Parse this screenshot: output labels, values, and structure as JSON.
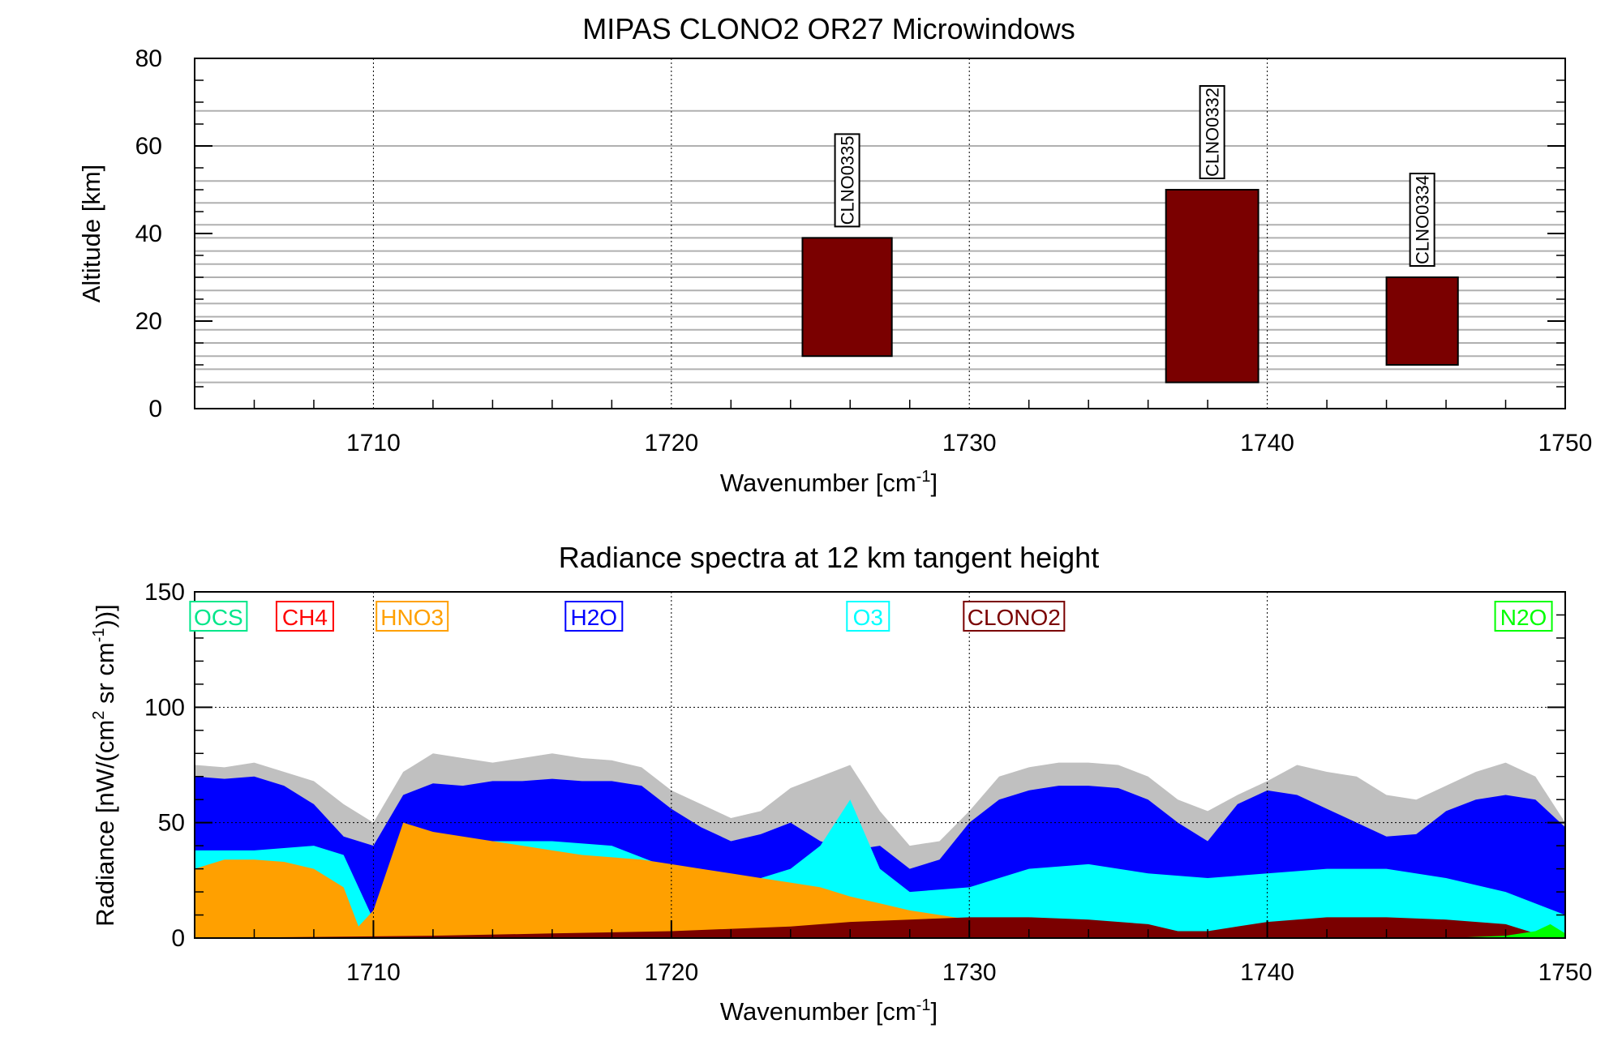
{
  "chart_data": [
    {
      "type": "bar",
      "title": "MIPAS CLONO2 OR27 Microwindows",
      "xlabel": "Wavenumber [cm",
      "xlabel_sup": "-1",
      "xlabel_end": "]",
      "ylabel": "Altitude [km]",
      "xlim": [
        1704,
        1750
      ],
      "ylim": [
        0,
        80
      ],
      "xticks": [
        "1710",
        "1720",
        "1730",
        "1740",
        "1750"
      ],
      "xtick_values": [
        1710,
        1720,
        1730,
        1740,
        1750
      ],
      "yticks": [
        "0",
        "20",
        "40",
        "60",
        "80"
      ],
      "ytick_values": [
        0,
        20,
        40,
        60,
        80
      ],
      "tangent_altitudes": [
        6,
        9,
        12,
        15,
        18,
        21,
        24,
        27,
        30,
        33,
        36,
        39,
        42,
        47,
        52,
        60,
        68,
        0
      ],
      "microwindows": [
        {
          "name": "CLNO0335",
          "x_start": 1724.4,
          "x_end": 1727.4,
          "y_bottom": 12,
          "y_top": 39
        },
        {
          "name": "CLNO0332",
          "x_start": 1736.6,
          "x_end": 1739.7,
          "y_bottom": 6,
          "y_top": 50
        },
        {
          "name": "CLNO0334",
          "x_start": 1744.0,
          "x_end": 1746.4,
          "y_bottom": 10,
          "y_top": 30
        }
      ],
      "bar_color": "#7a0000"
    },
    {
      "type": "area",
      "title": "Radiance spectra at 12 km tangent height",
      "xlabel": "Wavenumber [cm",
      "xlabel_sup": "-1",
      "xlabel_end": "]",
      "ylabel_parts": [
        "Radiance [nW/(cm",
        "2",
        " sr cm",
        "-1",
        "))]"
      ],
      "xlim": [
        1704,
        1750
      ],
      "ylim": [
        0,
        150
      ],
      "xticks": [
        "1710",
        "1720",
        "1730",
        "1740",
        "1750"
      ],
      "xtick_values": [
        1710,
        1720,
        1730,
        1740,
        1750
      ],
      "yticks": [
        "0",
        "50",
        "100",
        "150"
      ],
      "ytick_values": [
        0,
        50,
        100,
        150
      ],
      "species": [
        {
          "name": "OCS",
          "color": "#00e68a"
        },
        {
          "name": "CH4",
          "color": "#ff0000"
        },
        {
          "name": "HNO3",
          "color": "#ffa000"
        },
        {
          "name": "H2O",
          "color": "#0000ff"
        },
        {
          "name": "O3",
          "color": "#00ffff"
        },
        {
          "name": "CLONO2",
          "color": "#7a0000"
        },
        {
          "name": "N2O",
          "color": "#00ff00"
        }
      ],
      "series": [
        {
          "name": "Total",
          "color": "#c0c0c0",
          "x": [
            1704,
            1705,
            1706,
            1707,
            1708,
            1709,
            1710,
            1711,
            1712,
            1713,
            1714,
            1715,
            1716,
            1717,
            1718,
            1719,
            1720,
            1721,
            1722,
            1723,
            1724,
            1725,
            1726,
            1727,
            1728,
            1729,
            1730,
            1731,
            1732,
            1733,
            1734,
            1735,
            1736,
            1737,
            1738,
            1739,
            1740,
            1741,
            1742,
            1743,
            1744,
            1745,
            1746,
            1747,
            1748,
            1749,
            1750
          ],
          "values": [
            75,
            74,
            76,
            72,
            68,
            58,
            50,
            72,
            80,
            78,
            76,
            78,
            80,
            78,
            77,
            74,
            64,
            58,
            52,
            55,
            65,
            70,
            75,
            55,
            40,
            42,
            55,
            70,
            74,
            76,
            76,
            75,
            70,
            60,
            55,
            62,
            68,
            75,
            72,
            70,
            62,
            60,
            66,
            72,
            76,
            70,
            50
          ]
        },
        {
          "name": "H2O",
          "color": "#0000ff",
          "x": [
            1704,
            1705,
            1706,
            1707,
            1708,
            1709,
            1710,
            1711,
            1712,
            1713,
            1714,
            1715,
            1716,
            1717,
            1718,
            1719,
            1720,
            1721,
            1722,
            1723,
            1724,
            1725,
            1726,
            1727,
            1728,
            1729,
            1730,
            1731,
            1732,
            1733,
            1734,
            1735,
            1736,
            1737,
            1738,
            1739,
            1740,
            1741,
            1742,
            1743,
            1744,
            1745,
            1746,
            1747,
            1748,
            1749,
            1750
          ],
          "values": [
            70,
            69,
            70,
            66,
            58,
            44,
            40,
            62,
            67,
            66,
            68,
            68,
            69,
            68,
            68,
            66,
            56,
            48,
            42,
            45,
            50,
            42,
            38,
            40,
            30,
            34,
            50,
            60,
            64,
            66,
            66,
            65,
            60,
            50,
            42,
            58,
            64,
            62,
            56,
            50,
            44,
            45,
            55,
            60,
            62,
            60,
            48
          ]
        },
        {
          "name": "O3",
          "color": "#00ffff",
          "x": [
            1704,
            1706,
            1708,
            1709,
            1710,
            1712,
            1714,
            1716,
            1718,
            1720,
            1722,
            1724,
            1725,
            1726,
            1727,
            1728,
            1730,
            1732,
            1734,
            1736,
            1738,
            1740,
            1742,
            1744,
            1746,
            1748,
            1750
          ],
          "values": [
            38,
            38,
            40,
            36,
            8,
            40,
            42,
            42,
            40,
            30,
            22,
            30,
            40,
            60,
            30,
            20,
            22,
            30,
            32,
            28,
            26,
            28,
            30,
            30,
            26,
            20,
            10
          ]
        },
        {
          "name": "HNO3",
          "color": "#ffa000",
          "x": [
            1704,
            1705,
            1706,
            1707,
            1708,
            1709,
            1709.5,
            1710,
            1711,
            1712,
            1713,
            1714,
            1715,
            1716,
            1717,
            1718,
            1719,
            1720,
            1721,
            1722,
            1723,
            1724,
            1725,
            1726,
            1727,
            1728,
            1729,
            1730,
            1731,
            1732,
            1733,
            1734,
            1735,
            1736,
            1737,
            1738,
            1739,
            1740
          ],
          "values": [
            30,
            34,
            34,
            33,
            30,
            22,
            5,
            12,
            50,
            46,
            44,
            42,
            40,
            38,
            36,
            35,
            34,
            32,
            30,
            28,
            26,
            24,
            22,
            18,
            15,
            12,
            10,
            8,
            6,
            5,
            4,
            3,
            3,
            2,
            2,
            1,
            1,
            0
          ]
        },
        {
          "name": "CLONO2",
          "color": "#7a0000",
          "x": [
            1704,
            1708,
            1712,
            1716,
            1720,
            1724,
            1726,
            1728,
            1730,
            1732,
            1734,
            1736,
            1737,
            1738,
            1740,
            1742,
            1744,
            1746,
            1748,
            1749,
            1750
          ],
          "values": [
            0,
            0.5,
            1,
            2,
            3,
            5,
            7,
            8,
            9,
            9,
            8,
            6,
            3,
            3,
            7,
            9,
            9,
            8,
            6,
            2,
            1
          ]
        },
        {
          "name": "N2O",
          "color": "#00ff00",
          "x": [
            1704,
            1740,
            1746,
            1748,
            1749,
            1749.5,
            1750
          ],
          "values": [
            0,
            0,
            0,
            1,
            3,
            6,
            2
          ]
        }
      ]
    }
  ]
}
